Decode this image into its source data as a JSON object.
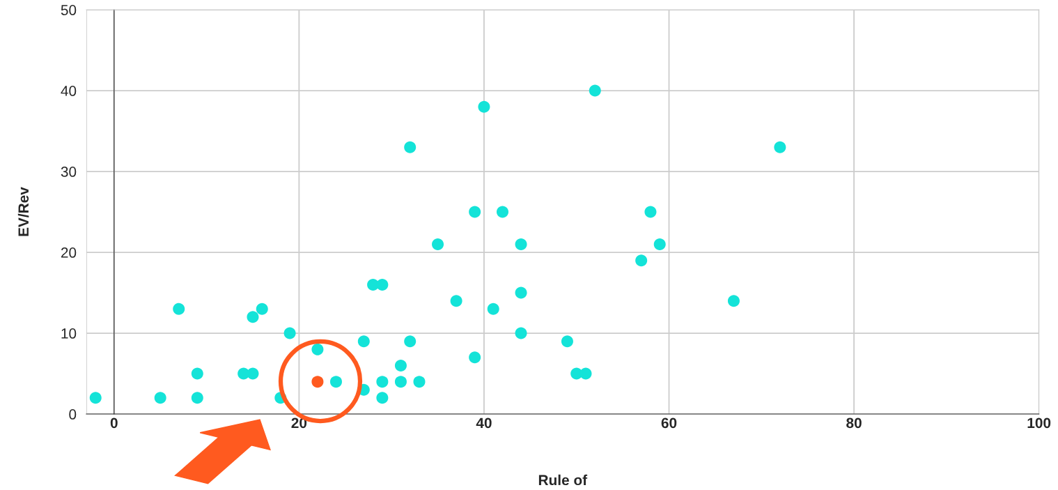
{
  "chart_data": {
    "type": "scatter",
    "xlabel": "Rule of",
    "ylabel": "EV/Rev",
    "xlim": [
      -3,
      100
    ],
    "xticks": [
      0,
      20,
      40,
      60,
      80,
      100
    ],
    "ylim": [
      0,
      50
    ],
    "yticks": [
      0,
      10,
      20,
      30,
      40,
      50
    ],
    "grid": true,
    "marker": "circle",
    "series": [
      {
        "color": "#14e3d8",
        "x": [
          -2,
          5,
          7,
          9,
          9,
          14,
          15,
          15,
          16,
          18,
          19,
          22,
          24,
          27,
          27,
          28,
          29,
          29,
          29,
          31,
          31,
          32,
          32,
          33,
          35,
          37,
          39,
          39,
          40,
          41,
          42,
          44,
          44,
          44,
          49,
          50,
          51,
          52,
          57,
          58,
          59,
          67,
          72
        ],
        "values": [
          2,
          2,
          13,
          5,
          2,
          5,
          5,
          12,
          13,
          2,
          10,
          8,
          4,
          3,
          9,
          16,
          16,
          4,
          2,
          6,
          4,
          9,
          33,
          4,
          21,
          14,
          25,
          7,
          38,
          13,
          25,
          21,
          15,
          10,
          9,
          5,
          5,
          40,
          19,
          25,
          21,
          14,
          33
        ]
      },
      {
        "color": "#ff5a1f",
        "x": [
          22
        ],
        "values": [
          4
        ]
      }
    ]
  }
}
